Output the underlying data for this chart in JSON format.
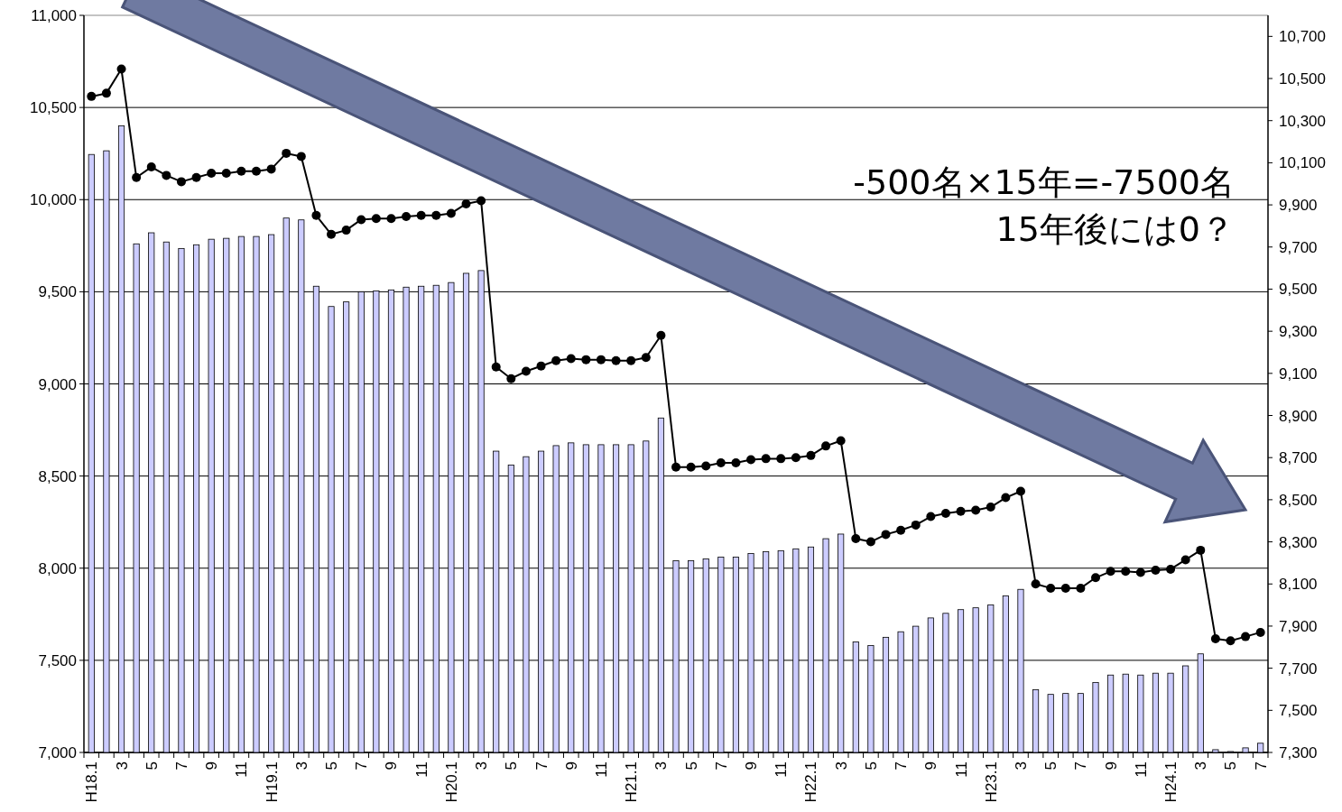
{
  "chart_data": {
    "type": "bar",
    "categories": [
      "H18.1",
      null,
      "3",
      null,
      "5",
      null,
      "7",
      null,
      "9",
      null,
      "11",
      null,
      "H19.1",
      null,
      "3",
      null,
      "5",
      null,
      "7",
      null,
      "9",
      null,
      "11",
      null,
      "H20.1",
      null,
      "3",
      null,
      "5",
      null,
      "7",
      null,
      "9",
      null,
      "11",
      null,
      "H21.1",
      null,
      "3",
      null,
      "5",
      null,
      "7",
      null,
      "9",
      null,
      "11",
      null,
      "H22.1",
      null,
      "3",
      null,
      "5",
      null,
      "7",
      null,
      "9",
      null,
      "11",
      null,
      "H23.1",
      null,
      "3",
      null,
      "5",
      null,
      "7",
      null,
      "9",
      null,
      "11",
      null,
      "H24.1",
      null,
      "3",
      null,
      "5",
      null,
      "7"
    ],
    "series": [
      {
        "color": "#ccccff",
        "values": [
          10245,
          10265,
          10400,
          9760,
          9820,
          9770,
          9735,
          9755,
          9785,
          9790,
          9800,
          9800,
          9810,
          9900,
          9890,
          9530,
          9420,
          9445,
          9500,
          9505,
          9510,
          9525,
          9530,
          9535,
          9550,
          9600,
          9615,
          8635,
          8560,
          8605,
          8635,
          8665,
          8680,
          8670,
          8670,
          8670,
          8670,
          8690,
          8815,
          8040,
          8040,
          8050,
          8060,
          8060,
          8080,
          8090,
          8095,
          8105,
          8115,
          8160,
          8185,
          7600,
          7580,
          7625,
          7655,
          7685,
          7730,
          7755,
          7775,
          7785,
          7800,
          7850,
          7885,
          7340,
          7315,
          7320,
          7320,
          7380,
          7420,
          7425,
          7420,
          7430,
          7430,
          7470,
          7535,
          7015,
          7005,
          7025,
          7050
        ]
      },
      {
        "type": "line",
        "axis": "y2",
        "color": "#000000",
        "values": [
          10415,
          10430,
          10545,
          10030,
          10080,
          10040,
          10010,
          10030,
          10050,
          10050,
          10060,
          10060,
          10070,
          10145,
          10130,
          9850,
          9760,
          9780,
          9830,
          9835,
          9835,
          9845,
          9850,
          9850,
          9860,
          9905,
          9920,
          9130,
          9075,
          9110,
          9135,
          9160,
          9170,
          9165,
          9165,
          9160,
          9160,
          9175,
          9280,
          8655,
          8655,
          8660,
          8675,
          8675,
          8690,
          8695,
          8695,
          8700,
          8710,
          8755,
          8780,
          8315,
          8300,
          8335,
          8355,
          8380,
          8420,
          8435,
          8445,
          8450,
          8465,
          8510,
          8540,
          8100,
          8080,
          8080,
          8080,
          8130,
          8160,
          8160,
          8155,
          8165,
          8170,
          8215,
          8260,
          7840,
          7830,
          7850,
          7870
        ]
      }
    ],
    "ylim": [
      7000,
      11000
    ],
    "yticks": [
      {
        "value": 7000,
        "label": "7,000"
      },
      {
        "value": 7500,
        "label": "7,500"
      },
      {
        "value": 8000,
        "label": "8,000"
      },
      {
        "value": 8500,
        "label": "8,500"
      },
      {
        "value": 9000,
        "label": "9,000"
      },
      {
        "value": 9500,
        "label": "9,500"
      },
      {
        "value": 10000,
        "label": "10,000"
      },
      {
        "value": 10500,
        "label": "10,500"
      },
      {
        "value": 11000,
        "label": "11,000"
      }
    ],
    "y2lim": [
      7300,
      10800
    ],
    "y2ticks": [
      {
        "value": 7300,
        "label": "7,300"
      },
      {
        "value": 7500,
        "label": "7,500"
      },
      {
        "value": 7700,
        "label": "7,700"
      },
      {
        "value": 7900,
        "label": "7,900"
      },
      {
        "value": 8100,
        "label": "8,100"
      },
      {
        "value": 8300,
        "label": "8,300"
      },
      {
        "value": 8500,
        "label": "8,500"
      },
      {
        "value": 8700,
        "label": "8,700"
      },
      {
        "value": 8900,
        "label": "8,900"
      },
      {
        "value": 9100,
        "label": "9,100"
      },
      {
        "value": 9300,
        "label": "9,300"
      },
      {
        "value": 9500,
        "label": "9,500"
      },
      {
        "value": 9700,
        "label": "9,700"
      },
      {
        "value": 9900,
        "label": "9,900"
      },
      {
        "value": 10100,
        "label": "10,100"
      },
      {
        "value": 10300,
        "label": "10,300"
      },
      {
        "value": 10500,
        "label": "10,500"
      },
      {
        "value": 10700,
        "label": "10,700"
      }
    ],
    "grid": "y",
    "marker": "circle",
    "annotations": [
      "-500名×15年=-7500名",
      "15年後には0？"
    ]
  }
}
